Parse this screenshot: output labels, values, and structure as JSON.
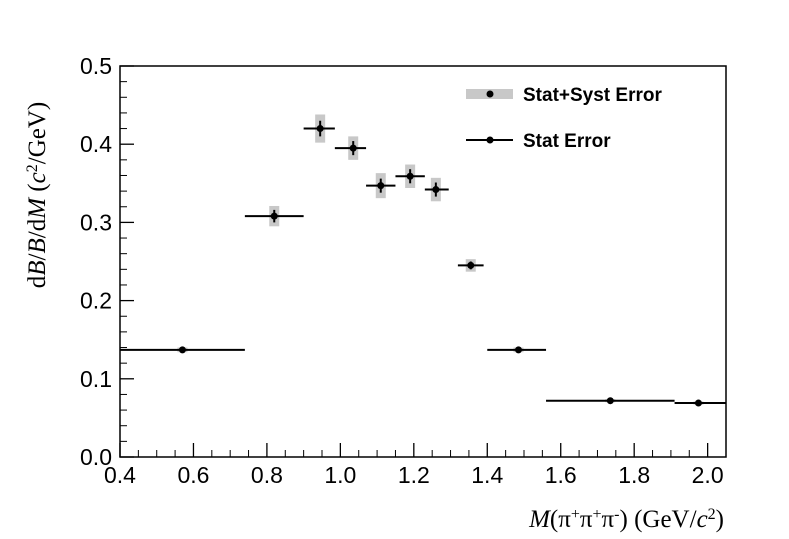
{
  "chart_data": {
    "type": "scatter",
    "xlabel": "M(π⁺π⁺π⁻) (GeV/c²)",
    "ylabel": "dB/B/dM (c²/GeV)",
    "xlim": [
      0.4,
      2.05
    ],
    "ylim": [
      0.0,
      0.5
    ],
    "xticks": [
      "0.4",
      "0.6",
      "0.8",
      "1.0",
      "1.2",
      "1.4",
      "1.6",
      "1.8",
      "2.0"
    ],
    "yticks": [
      "0.0",
      "0.1",
      "0.2",
      "0.3",
      "0.4",
      "0.5"
    ],
    "legend": {
      "placement": "top-right",
      "entries": [
        "Stat+Syst Error",
        "Stat Error"
      ]
    },
    "series": [
      {
        "name": "Stat+Syst Error",
        "points": [
          {
            "x": 0.57,
            "xlo": 0.4,
            "xhi": 0.74,
            "y": 0.137,
            "stat": 0.002,
            "total": 0.003
          },
          {
            "x": 0.82,
            "xlo": 0.74,
            "xhi": 0.9,
            "y": 0.308,
            "stat": 0.008,
            "total": 0.013
          },
          {
            "x": 0.945,
            "xlo": 0.9,
            "xhi": 0.985,
            "y": 0.42,
            "stat": 0.01,
            "total": 0.018
          },
          {
            "x": 1.035,
            "xlo": 0.985,
            "xhi": 1.07,
            "y": 0.395,
            "stat": 0.009,
            "total": 0.015
          },
          {
            "x": 1.11,
            "xlo": 1.07,
            "xhi": 1.15,
            "y": 0.347,
            "stat": 0.009,
            "total": 0.016
          },
          {
            "x": 1.19,
            "xlo": 1.15,
            "xhi": 1.23,
            "y": 0.359,
            "stat": 0.009,
            "total": 0.015
          },
          {
            "x": 1.26,
            "xlo": 1.23,
            "xhi": 1.295,
            "y": 0.342,
            "stat": 0.009,
            "total": 0.015
          },
          {
            "x": 1.355,
            "xlo": 1.32,
            "xhi": 1.39,
            "y": 0.245,
            "stat": 0.005,
            "total": 0.008
          },
          {
            "x": 1.485,
            "xlo": 1.4,
            "xhi": 1.56,
            "y": 0.137,
            "stat": 0.002,
            "total": 0.003
          },
          {
            "x": 1.735,
            "xlo": 1.56,
            "xhi": 1.91,
            "y": 0.072,
            "stat": 0.001,
            "total": 0.002
          },
          {
            "x": 1.975,
            "xlo": 1.91,
            "xhi": 2.05,
            "y": 0.069,
            "stat": 0.001,
            "total": 0.002
          }
        ]
      }
    ],
    "colors": {
      "syst_band": "#c8c8c8",
      "marker": "#000000"
    }
  }
}
